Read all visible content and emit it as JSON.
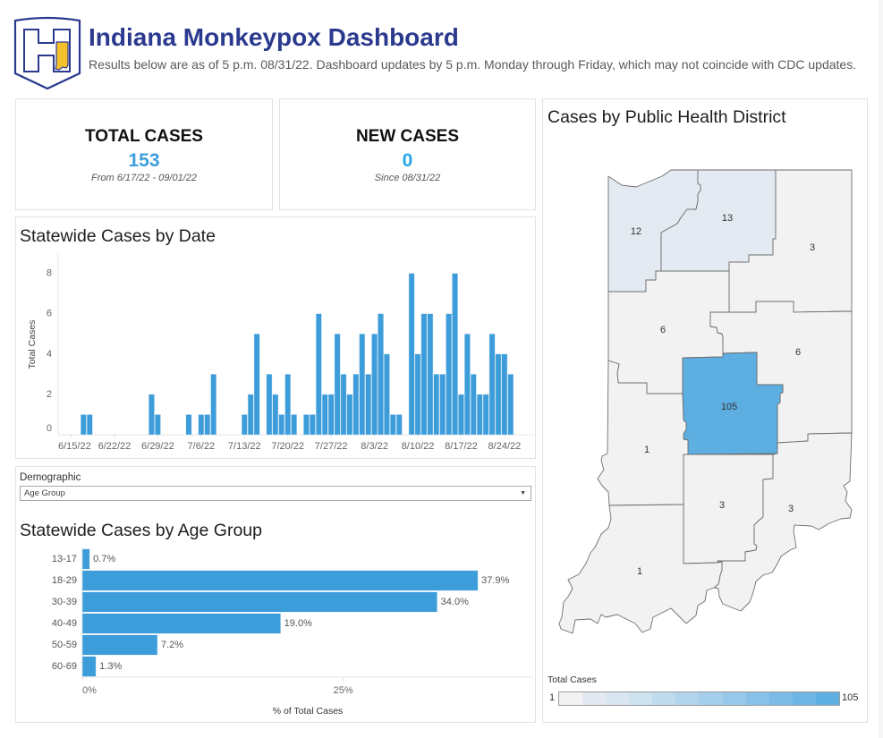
{
  "header": {
    "title": "Indiana Monkeypox Dashboard",
    "subtitle": "Results below are as of 5 p.m. 08/31/22. Dashboard updates by 5 p.m. Monday through Friday, which may not coincide with CDC updates.",
    "logo_icon": "indiana-health-logo"
  },
  "colors": {
    "brand_navy": "#2b3a8f",
    "logo_yellow": "#f5c12a",
    "kpi_total": "#3c9edb",
    "kpi_new": "#24a6e6",
    "bar": "#3d9dda"
  },
  "kpis": {
    "total": {
      "label": "TOTAL CASES",
      "value": "153",
      "note": "From  6/17/22 - 09/01/22"
    },
    "new": {
      "label": "NEW CASES",
      "value": "0",
      "note": "Since 08/31/22"
    }
  },
  "filter": {
    "label": "Demographic",
    "selected": "Age Group",
    "arrow_icon": "▼"
  },
  "chart_data": [
    {
      "type": "bar",
      "title": "Statewide Cases by Date",
      "xlabel": "",
      "ylabel": "Total Cases",
      "color": "#3d9dda",
      "x": [
        "6/17/22",
        "6/18/22",
        "6/28/22",
        "6/29/22",
        "7/4/22",
        "7/6/22",
        "7/7/22",
        "7/8/22",
        "7/13/22",
        "7/14/22",
        "7/15/22",
        "7/17/22",
        "7/18/22",
        "7/19/22",
        "7/20/22",
        "7/21/22",
        "7/23/22",
        "7/24/22",
        "7/25/22",
        "7/26/22",
        "7/27/22",
        "7/28/22",
        "7/29/22",
        "7/30/22",
        "7/31/22",
        "8/1/22",
        "8/2/22",
        "8/3/22",
        "8/4/22",
        "8/5/22",
        "8/6/22",
        "8/7/22",
        "8/9/22",
        "8/10/22",
        "8/11/22",
        "8/12/22",
        "8/13/22",
        "8/14/22",
        "8/15/22",
        "8/16/22",
        "8/17/22",
        "8/18/22",
        "8/19/22",
        "8/20/22",
        "8/21/22",
        "8/22/22",
        "8/23/22",
        "8/24/22",
        "8/25/22"
      ],
      "values": [
        1,
        1,
        2,
        1,
        1,
        1,
        1,
        3,
        1,
        2,
        5,
        3,
        2,
        1,
        3,
        1,
        1,
        1,
        6,
        2,
        2,
        5,
        3,
        2,
        3,
        5,
        3,
        5,
        6,
        4,
        1,
        1,
        8,
        4,
        6,
        6,
        3,
        3,
        6,
        8,
        2,
        5,
        3,
        2,
        2,
        5,
        4,
        4,
        3
      ],
      "xticks": [
        "6/15/22",
        "6/22/22",
        "6/29/22",
        "7/6/22",
        "7/13/22",
        "7/20/22",
        "7/27/22",
        "8/3/22",
        "8/10/22",
        "8/17/22",
        "8/24/22"
      ],
      "yticks": [
        0,
        2,
        4,
        6,
        8
      ],
      "ylim": [
        0,
        9
      ],
      "grid": false
    },
    {
      "type": "bar",
      "orientation": "horizontal",
      "title": "Statewide Cases by Age Group",
      "color": "#3d9dda",
      "categories": [
        "13-17",
        "18-29",
        "30-39",
        "40-49",
        "50-59",
        "60-69"
      ],
      "values": [
        0.7,
        37.9,
        34.0,
        19.0,
        7.2,
        1.3
      ],
      "labels": [
        "0.7%",
        "37.9%",
        "34.0%",
        "19.0%",
        "7.2%",
        "1.3%"
      ],
      "xticks": [
        0,
        25
      ],
      "xtick_labels": [
        "0%",
        "25%"
      ],
      "xlabel": "% of Total Cases",
      "ylabel": "",
      "xlim": [
        0,
        43.2
      ],
      "grid": false
    }
  ],
  "map": {
    "title": "Cases by Public Health District",
    "districts": [
      {
        "label": "12",
        "value": 12,
        "fill": "#e3eaf1"
      },
      {
        "label": "13",
        "value": 13,
        "fill": "#e3eaf1"
      },
      {
        "label": "3",
        "value": 3,
        "fill": "#f2f2f2"
      },
      {
        "label": "6",
        "value": 6,
        "fill": "#f2f2f2"
      },
      {
        "label": "6",
        "value": 6,
        "fill": "#f2f2f2"
      },
      {
        "label": "105",
        "value": 105,
        "fill": "#5daee1"
      },
      {
        "label": "1",
        "value": 1,
        "fill": "#f2f2f2"
      },
      {
        "label": "3",
        "value": 3,
        "fill": "#f2f2f2"
      },
      {
        "label": "3",
        "value": 3,
        "fill": "#f2f2f2"
      },
      {
        "label": "1",
        "value": 1,
        "fill": "#f2f2f2"
      }
    ],
    "legend": {
      "title": "Total Cases",
      "min": "1",
      "max": "105",
      "colors": [
        "#f2f2f2",
        "#e3e9f0",
        "#d9e5f0",
        "#cde1ef",
        "#bfdbee",
        "#b2d4ec",
        "#a4ceeb",
        "#97c8e9",
        "#88c1e7",
        "#7bbbe6",
        "#6db5e4",
        "#5eafe2"
      ]
    }
  }
}
